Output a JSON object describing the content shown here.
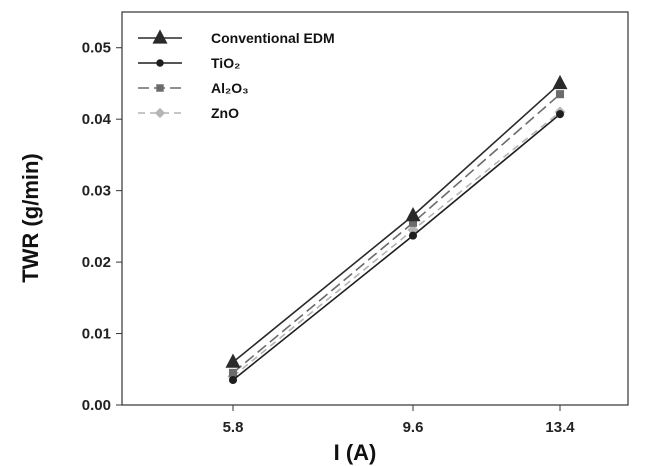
{
  "chart_data": {
    "type": "line",
    "title": "",
    "xlabel": "I (A)",
    "ylabel": "TWR (g/min)",
    "categories": [
      "5.8",
      "9.6",
      "13.4"
    ],
    "ylim": [
      0,
      0.055
    ],
    "yticks": [
      "0.00",
      "0.01",
      "0.02",
      "0.03",
      "0.04",
      "0.05"
    ],
    "legend_position": "top-left",
    "grid": false,
    "series": [
      {
        "name": "Conventional EDM",
        "values": [
          0.006,
          0.0265,
          0.045
        ],
        "color": "#2a2a2a",
        "marker": "triangle",
        "dash": "solid"
      },
      {
        "name": "TiO₂",
        "values": [
          0.0035,
          0.0237,
          0.0407
        ],
        "color": "#1e1e1e",
        "marker": "circle",
        "dash": "solid"
      },
      {
        "name": "Al₂O₃",
        "values": [
          0.0045,
          0.0255,
          0.0435
        ],
        "color": "#6b6b6b",
        "marker": "square",
        "dash": "long-dash"
      },
      {
        "name": "ZnO",
        "values": [
          0.004,
          0.0245,
          0.041
        ],
        "color": "#b4b4b4",
        "marker": "diamond",
        "dash": "dash"
      }
    ]
  }
}
